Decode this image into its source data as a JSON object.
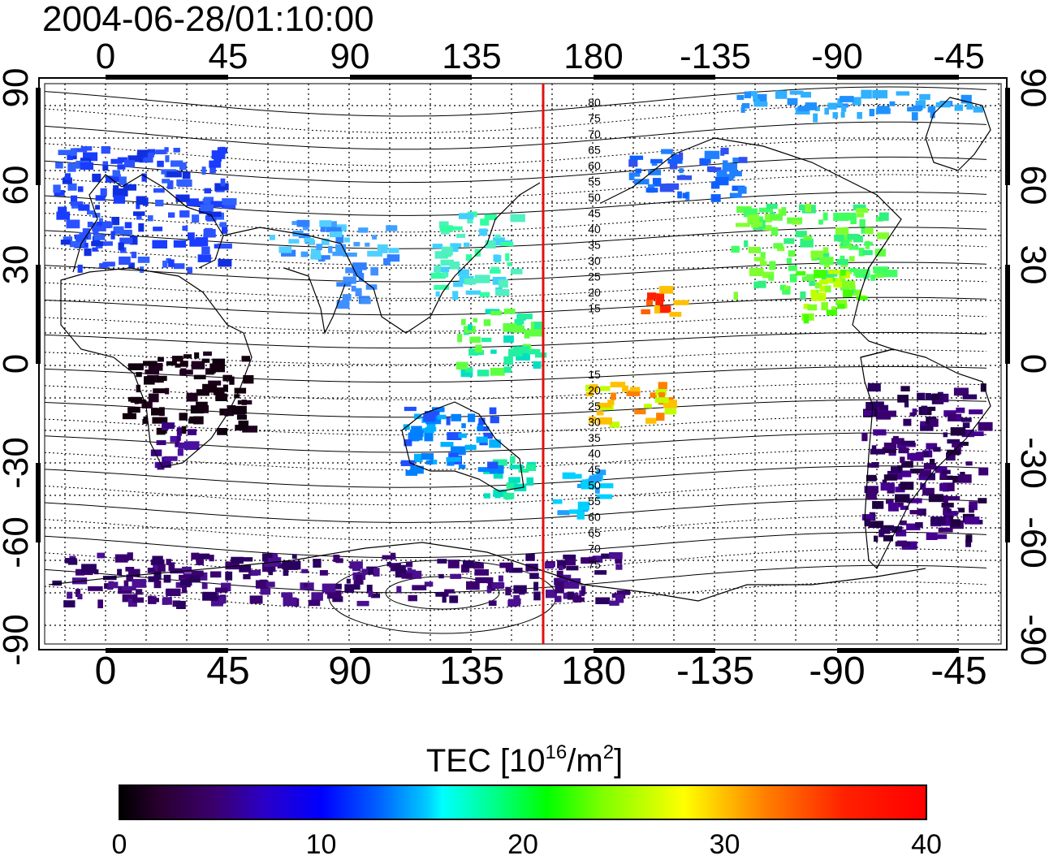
{
  "timestamp": "2004-06-28/01:10:00",
  "map": {
    "lon_top_labels": [
      "0",
      "45",
      "90",
      "135",
      "180",
      "-135",
      "-90",
      "-45"
    ],
    "lon_bottom_labels": [
      "0",
      "45",
      "90",
      "135",
      "180",
      "-135",
      "-90",
      "-45"
    ],
    "lat_left_labels": [
      "90",
      "60",
      "30",
      "0",
      "-30",
      "-60",
      "-90"
    ],
    "lat_right_labels": [
      "90",
      "60",
      "30",
      "0",
      "-30",
      "-60",
      "-90"
    ],
    "contour_labels_north": [
      "80",
      "75",
      "70",
      "65",
      "60",
      "55",
      "50",
      "45",
      "40",
      "35",
      "30",
      "25",
      "20",
      "15"
    ],
    "contour_labels_south": [
      "15",
      "20",
      "25",
      "30",
      "35",
      "40",
      "45",
      "50",
      "55",
      "60",
      "65",
      "70",
      "75"
    ],
    "reference_line_color": "#e01010"
  },
  "colorbar": {
    "title_main": "TEC  [10",
    "title_sup1": "16",
    "title_mid": "/m",
    "title_sup2": "2",
    "title_end": "]",
    "ticks": [
      "0",
      "10",
      "20",
      "30",
      "40"
    ],
    "range": [
      0,
      40
    ],
    "colormap": [
      "#000000",
      "#3b0070",
      "#0000ff",
      "#00ffff",
      "#00ff00",
      "#ffff00",
      "#ff0000"
    ]
  }
}
